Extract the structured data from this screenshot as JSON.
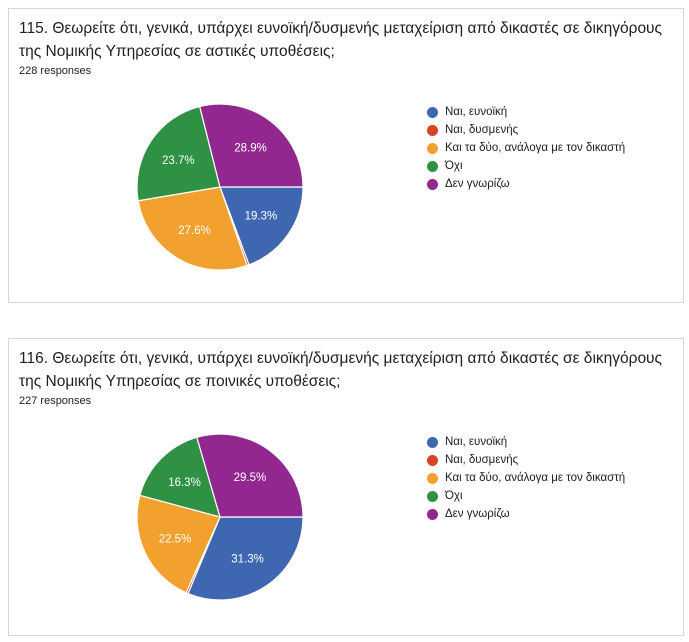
{
  "colors": {
    "blue": "#3f67b1",
    "red": "#d64325",
    "orange": "#f2a02e",
    "green": "#2f9143",
    "purple": "#92278f"
  },
  "chart_data": [
    {
      "type": "pie",
      "title": "115. Θεωρείτε ότι, γενικά, υπάρχει ευνοϊκή/δυσμενής μεταχείριση από δικαστές σε δικηγόρους της Νομικής Υπηρεσίας σε αστικές υποθέσεις;",
      "responses": "228 responses",
      "categories": [
        "Ναι, ευνοϊκή",
        "Ναι, δυσμενής",
        "Και τα δύο, ανάλογα με τον δικαστή",
        "Όχι",
        "Δεν γνωρίζω"
      ],
      "values": [
        19.3,
        0.4,
        27.6,
        23.7,
        28.9
      ],
      "labels": [
        "19.3%",
        "",
        "27.6%",
        "23.7%",
        "28.9%"
      ],
      "colors": [
        "#3f67b1",
        "#d64325",
        "#f2a02e",
        "#2f9143",
        "#92278f"
      ],
      "legend_position": "right"
    },
    {
      "type": "pie",
      "title": "116. Θεωρείτε ότι, γενικά, υπάρχει ευνοϊκή/δυσμενής μεταχείριση από δικαστές σε δικηγόρους της Νομικής Υπηρεσίας σε ποινικές υποθέσεις;",
      "responses": "227 responses",
      "categories": [
        "Ναι, ευνοϊκή",
        "Ναι, δυσμενής",
        "Και τα δύο, ανάλογα με τον δικαστή",
        "Όχι",
        "Δεν γνωρίζω"
      ],
      "values": [
        31.3,
        0.4,
        22.5,
        16.3,
        29.5
      ],
      "labels": [
        "31.3%",
        "",
        "22.5%",
        "16.3%",
        "29.5%"
      ],
      "colors": [
        "#3f67b1",
        "#d64325",
        "#f2a02e",
        "#2f9143",
        "#92278f"
      ],
      "legend_position": "right"
    }
  ]
}
